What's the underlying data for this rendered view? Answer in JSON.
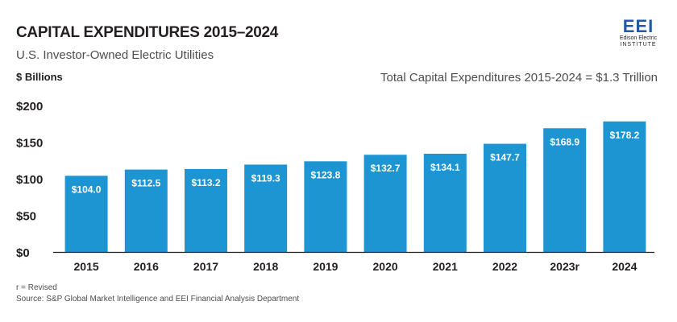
{
  "header": {
    "title": "CAPITAL EXPENDITURES 2015–2024",
    "subtitle": "U.S. Investor-Owned Electric Utilities",
    "unit": "$ Billions",
    "total_note": "Total Capital Expenditures 2015-2024 = $1.3 Trillion"
  },
  "logo": {
    "mark": "EEI",
    "line1": "Edison Electric",
    "line2": "INSTITUTE"
  },
  "colors": {
    "bar": "#1e95d3",
    "bar_label": "#ffffff",
    "text": "#231f20",
    "axis": "#231f20"
  },
  "chart_data": {
    "type": "bar",
    "categories": [
      "2015",
      "2016",
      "2017",
      "2018",
      "2019",
      "2020",
      "2021",
      "2022",
      "2023r",
      "2024"
    ],
    "values": [
      104.0,
      112.5,
      113.2,
      119.3,
      123.8,
      132.7,
      134.1,
      147.7,
      168.9,
      178.2
    ],
    "value_labels": [
      "$104.0",
      "$112.5",
      "$113.2",
      "$119.3",
      "$123.8",
      "$132.7",
      "$134.1",
      "$147.7",
      "$168.9",
      "$178.2"
    ],
    "yticks": [
      0,
      50,
      100,
      150,
      200
    ],
    "ytick_labels": [
      "$0",
      "$50",
      "$100",
      "$150",
      "$200"
    ],
    "ylim": [
      0,
      200
    ],
    "grid": false,
    "legend": "none"
  },
  "footnotes": {
    "revised": "r = Revised",
    "source": "Source: S&P Global Market Intelligence and EEI Financial Analysis Department"
  }
}
